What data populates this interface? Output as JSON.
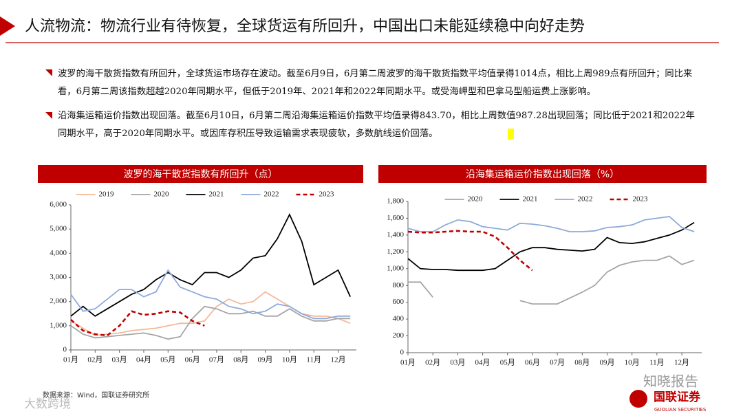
{
  "header": {
    "title": "人流物流：物流行业有待恢复，全球货运有所回升，中国出口未能延续稳中向好走势"
  },
  "bullets": [
    "波罗的海干散货指数有所回升，全球货运市场存在波动。截至6月9日，6月第二周波罗的海干散货指数平均值录得1014点，相比上周989点有所回升；同比来看，6月第二周该指数超越2020年同期水平，但低于2019年、2021年和2022年同期水平。或受海岬型和巴拿马型船运费上涨影响。",
    "沿海集运箱运价指数出现回落。截至6月10日，6月第二周沿海集运箱运价指数平均值录得843.70，相比上周数值987.28出现回落；同比低于2021和2022年同期水平，高于2020年同期水平。或因库存积压导致运输需求表现疲软，多数航线运价回落。"
  ],
  "chart_data": [
    {
      "type": "line",
      "title": "波罗的海干散货指数有所回升（点）",
      "x": [
        1,
        1.5,
        2,
        2.5,
        3,
        3.5,
        4,
        4.5,
        5,
        5.5,
        6,
        6.5,
        7,
        7.5,
        8,
        8.5,
        9,
        9.5,
        10,
        10.5,
        11,
        11.5,
        12,
        12.5
      ],
      "xlim": [
        1,
        12.75
      ],
      "xticks": [
        {
          "value": 1,
          "label": "01月"
        },
        {
          "value": 2,
          "label": "02月"
        },
        {
          "value": 3,
          "label": "03月"
        },
        {
          "value": 4,
          "label": "04月"
        },
        {
          "value": 5,
          "label": "05月"
        },
        {
          "value": 6,
          "label": "06月"
        },
        {
          "value": 7,
          "label": "07月"
        },
        {
          "value": 8,
          "label": "08月"
        },
        {
          "value": 9,
          "label": "09月"
        },
        {
          "value": 10,
          "label": "10月"
        },
        {
          "value": 11,
          "label": "11月"
        },
        {
          "value": 12,
          "label": "12月"
        }
      ],
      "ylim": [
        0,
        6000
      ],
      "yticks": [
        0,
        {
          "value": 1000,
          "label": "1,000"
        },
        {
          "value": 2000,
          "label": "2,000"
        },
        {
          "value": 3000,
          "label": "3,000"
        },
        {
          "value": 4000,
          "label": "4,000"
        },
        {
          "value": 5000,
          "label": "5,000"
        },
        {
          "value": 6000,
          "label": "6,000"
        }
      ],
      "series": [
        {
          "name": "2019",
          "color": "#f4b898",
          "values": [
            1200,
            900,
            600,
            650,
            700,
            800,
            850,
            900,
            1000,
            1100,
            1100,
            1200,
            1800,
            2100,
            1900,
            2000,
            2400,
            2100,
            1800,
            1500,
            1400,
            1400,
            1300,
            1100
          ]
        },
        {
          "name": "2020",
          "color": "#a5a5a5",
          "values": [
            1000,
            650,
            500,
            550,
            600,
            650,
            700,
            600,
            450,
            550,
            1300,
            1800,
            1700,
            1500,
            1500,
            1600,
            1400,
            1400,
            1700,
            1400,
            1200,
            1200,
            1300,
            1300
          ]
        },
        {
          "name": "2021",
          "color": "#000000",
          "values": [
            1400,
            1800,
            1400,
            1700,
            2000,
            2300,
            2500,
            2900,
            3200,
            2900,
            2700,
            3200,
            3200,
            3000,
            3300,
            3800,
            3900,
            4600,
            5600,
            4500,
            2700,
            3000,
            3300,
            2200
          ]
        },
        {
          "name": "2022",
          "color": "#8eaadb",
          "values": [
            2300,
            1600,
            1700,
            2100,
            2500,
            2500,
            2200,
            2400,
            3300,
            2600,
            2400,
            2200,
            2100,
            1800,
            1700,
            1500,
            1600,
            1900,
            1800,
            1500,
            1300,
            1300,
            1400,
            1400
          ]
        },
        {
          "name": "2023",
          "color": "#c00000",
          "dash": true,
          "values": [
            1250,
            800,
            650,
            600,
            1000,
            1600,
            1450,
            1500,
            1600,
            1550,
            1200,
            1000,
            null,
            null,
            null,
            null,
            null,
            null,
            null,
            null,
            null,
            null,
            null,
            null
          ]
        }
      ]
    },
    {
      "type": "line",
      "title": "沿海集运箱运价指数出现回落（%）",
      "x": [
        1,
        1.5,
        2,
        2.5,
        3,
        3.5,
        4,
        4.5,
        5,
        5.5,
        6,
        6.5,
        7,
        7.5,
        8,
        8.5,
        9,
        9.5,
        10,
        10.5,
        11,
        11.5,
        12,
        12.5
      ],
      "xlim": [
        1,
        12.8
      ],
      "xticks": [
        {
          "value": 1,
          "label": "01月"
        },
        {
          "value": 2,
          "label": "02月"
        },
        {
          "value": 3,
          "label": "03月"
        },
        {
          "value": 4,
          "label": "04月"
        },
        {
          "value": 5,
          "label": "05月"
        },
        {
          "value": 6,
          "label": "06月"
        },
        {
          "value": 7,
          "label": "07月"
        },
        {
          "value": 8,
          "label": "08月"
        },
        {
          "value": 9,
          "label": "09月"
        },
        {
          "value": 10,
          "label": "10月"
        },
        {
          "value": 11,
          "label": "11月"
        },
        {
          "value": 12,
          "label": "12月"
        }
      ],
      "ylim": [
        0,
        1800
      ],
      "yticks": [
        0,
        200,
        400,
        600,
        800,
        {
          "value": 1000,
          "label": "1,000"
        },
        {
          "value": 1200,
          "label": "1,200"
        },
        {
          "value": 1400,
          "label": "1,400"
        },
        {
          "value": 1600,
          "label": "1,600"
        },
        {
          "value": 1800,
          "label": "1,800"
        }
      ],
      "series": [
        {
          "name": "2020",
          "color": "#a5a5a5",
          "values": [
            840,
            840,
            660,
            null,
            null,
            null,
            null,
            null,
            null,
            620,
            580,
            580,
            580,
            650,
            720,
            800,
            960,
            1040,
            1080,
            1100,
            1100,
            1150,
            1050,
            1100
          ]
        },
        {
          "name": "2021",
          "color": "#000000",
          "values": [
            1120,
            1000,
            990,
            990,
            980,
            980,
            980,
            1000,
            1100,
            1200,
            1250,
            1250,
            1230,
            1220,
            1210,
            1230,
            1370,
            1310,
            1300,
            1320,
            1360,
            1400,
            1460,
            1550
          ]
        },
        {
          "name": "2022",
          "color": "#8eaadb",
          "values": [
            1480,
            1440,
            1440,
            1520,
            1580,
            1560,
            1500,
            1480,
            1460,
            1540,
            1530,
            1510,
            1480,
            1440,
            1440,
            1450,
            1490,
            1500,
            1520,
            1580,
            1600,
            1620,
            1490,
            1440
          ]
        },
        {
          "name": "2023",
          "color": "#c00000",
          "dash": true,
          "values": [
            1440,
            1430,
            1430,
            1440,
            1450,
            1440,
            1440,
            1380,
            1250,
            1100,
            980,
            null,
            null,
            null,
            null,
            null,
            null,
            null,
            null,
            null,
            null,
            null,
            null,
            null
          ]
        }
      ]
    }
  ],
  "source": "数据来源：Wind，国联证券研究所",
  "watermark": "知晓报告",
  "logo": {
    "name": "国联证券",
    "english": "GUOLIAN SECURITIES"
  },
  "corner_mark": "大数跨境"
}
